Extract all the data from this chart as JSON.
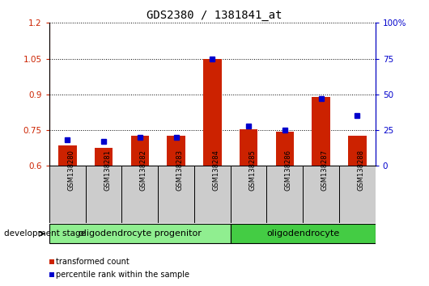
{
  "title": "GDS2380 / 1381841_at",
  "samples": [
    "GSM138280",
    "GSM138281",
    "GSM138282",
    "GSM138283",
    "GSM138284",
    "GSM138285",
    "GSM138286",
    "GSM138287",
    "GSM138288"
  ],
  "red_values": [
    0.685,
    0.675,
    0.725,
    0.725,
    1.048,
    0.755,
    0.745,
    0.89,
    0.728
  ],
  "blue_values_pct": [
    18,
    17,
    20,
    20,
    75,
    28,
    25,
    47,
    35
  ],
  "ylim_left": [
    0.6,
    1.2
  ],
  "ylim_right": [
    0,
    100
  ],
  "yticks_left": [
    0.6,
    0.75,
    0.9,
    1.05,
    1.2
  ],
  "yticks_right": [
    0,
    25,
    50,
    75,
    100
  ],
  "ytick_labels_left": [
    "0.6",
    "0.75",
    "0.9",
    "1.05",
    "1.2"
  ],
  "ytick_labels_right": [
    "0",
    "25",
    "50",
    "75",
    "100%"
  ],
  "groups": [
    {
      "label": "oligodendrocyte progenitor",
      "indices": [
        0,
        1,
        2,
        3,
        4
      ],
      "color": "#90EE90"
    },
    {
      "label": "oligodendrocyte",
      "indices": [
        5,
        6,
        7,
        8
      ],
      "color": "#44CC44"
    }
  ],
  "red_color": "#CC2200",
  "blue_color": "#0000CC",
  "bar_width": 0.5,
  "blue_marker_size": 5,
  "legend_red": "transformed count",
  "legend_blue": "percentile rank within the sample",
  "dev_stage_label": "development stage",
  "axis_bg": "#FFFFFF",
  "title_fontsize": 10,
  "tick_fontsize": 7.5,
  "sample_fontsize": 6,
  "group_fontsize": 8,
  "legend_fontsize": 7
}
